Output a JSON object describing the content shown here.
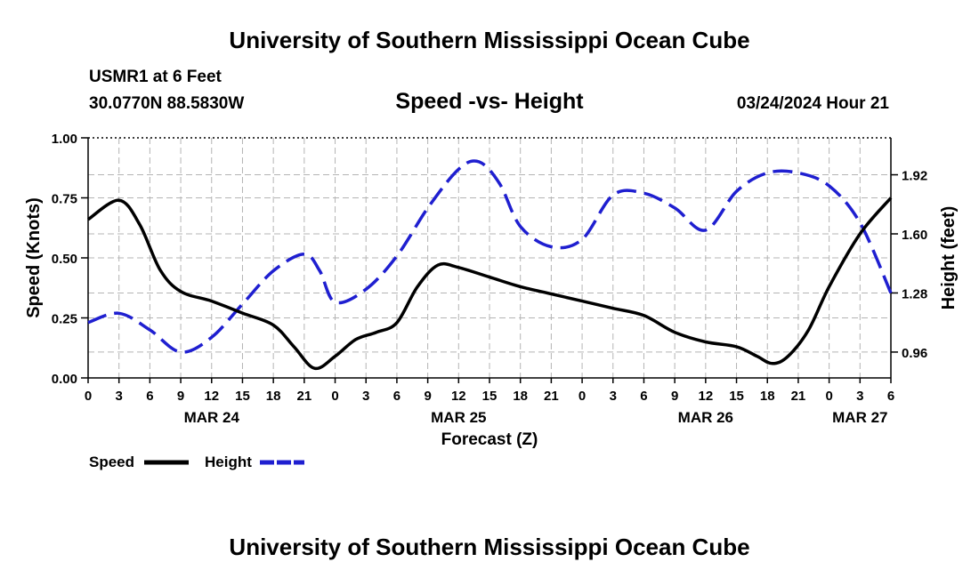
{
  "header": {
    "title_top": "University of Southern Mississippi Ocean Cube",
    "station": "USMR1 at 6 Feet",
    "coords": "30.0770N  88.5830W",
    "datetime": "03/24/2024 Hour 21",
    "title_bottom": "University of Southern Mississippi Ocean Cube"
  },
  "chart_data": {
    "type": "line",
    "title": "Speed -vs- Height",
    "xlabel": "Forecast (Z)",
    "ylabel_left": "Speed (Knots)",
    "ylabel_right": "Height (feet)",
    "x_unit": "hours from 00Z MAR 24",
    "xlim": [
      0,
      78
    ],
    "ylim_left": [
      0,
      1.0
    ],
    "ylim_right": [
      0.82,
      2.12
    ],
    "left_ticks": [
      0.0,
      0.25,
      0.5,
      0.75,
      1.0
    ],
    "left_tick_labels": [
      "0.00",
      "0.25",
      "0.50",
      "0.75",
      "1.00"
    ],
    "right_ticks": [
      0.96,
      1.28,
      1.6,
      1.92
    ],
    "right_tick_labels": [
      "0.96",
      "1.28",
      "1.60",
      "1.92"
    ],
    "x_ticks": [
      0,
      3,
      6,
      9,
      12,
      15,
      18,
      21,
      24,
      27,
      30,
      33,
      36,
      39,
      42,
      45,
      48,
      51,
      54,
      57,
      60,
      63,
      66,
      69,
      72,
      75,
      78
    ],
    "x_tick_labels": [
      "0",
      "3",
      "6",
      "9",
      "12",
      "15",
      "18",
      "21",
      "0",
      "3",
      "6",
      "9",
      "12",
      "15",
      "18",
      "21",
      "0",
      "3",
      "6",
      "9",
      "12",
      "15",
      "18",
      "21",
      "0",
      "3",
      "6"
    ],
    "date_labels": [
      {
        "label": "MAR 24",
        "x": 12
      },
      {
        "label": "MAR 25",
        "x": 36
      },
      {
        "label": "MAR 26",
        "x": 60
      },
      {
        "label": "MAR 27",
        "x": 75
      }
    ],
    "series": [
      {
        "name": "Speed",
        "axis": "left",
        "color": "#000000",
        "style": "solid",
        "x": [
          0,
          3,
          5,
          7,
          9,
          12,
          15,
          18,
          20,
          22,
          24,
          26,
          28,
          30,
          32,
          34,
          36,
          39,
          42,
          45,
          48,
          51,
          54,
          57,
          60,
          63,
          65,
          66.5,
          68,
          70,
          72,
          75,
          78
        ],
        "y": [
          0.66,
          0.74,
          0.64,
          0.45,
          0.36,
          0.32,
          0.27,
          0.22,
          0.13,
          0.04,
          0.09,
          0.16,
          0.19,
          0.23,
          0.38,
          0.47,
          0.46,
          0.42,
          0.38,
          0.35,
          0.32,
          0.29,
          0.26,
          0.19,
          0.15,
          0.13,
          0.09,
          0.06,
          0.09,
          0.2,
          0.38,
          0.6,
          0.75
        ]
      },
      {
        "name": "Height",
        "axis": "right",
        "color": "#1f1fd0",
        "style": "dashed",
        "x": [
          0,
          3,
          6,
          9,
          12,
          15,
          18,
          21,
          22.5,
          24,
          27,
          30,
          33,
          36,
          38,
          40,
          42,
          45,
          48,
          51,
          54,
          57,
          60,
          63,
          66,
          69,
          72,
          75,
          78
        ],
        "y": [
          1.12,
          1.17,
          1.08,
          0.96,
          1.04,
          1.22,
          1.4,
          1.49,
          1.4,
          1.23,
          1.3,
          1.48,
          1.74,
          1.95,
          1.99,
          1.87,
          1.64,
          1.53,
          1.57,
          1.81,
          1.82,
          1.74,
          1.62,
          1.83,
          1.93,
          1.93,
          1.86,
          1.66,
          1.28
        ]
      }
    ],
    "legend": [
      {
        "label": "Speed",
        "color": "#000000",
        "style": "solid"
      },
      {
        "label": "Height",
        "color": "#1f1fd0",
        "style": "dashed"
      }
    ]
  }
}
